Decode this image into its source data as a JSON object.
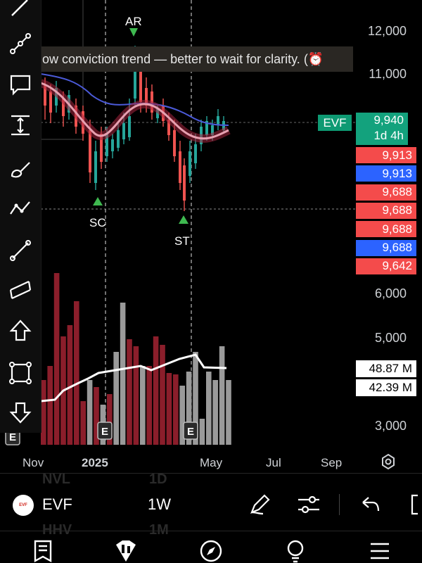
{
  "banner": {
    "text": "ow conviction trend — better to wait for clarity. (⏰"
  },
  "price_axis": {
    "labels": [
      "12,000",
      "11,000",
      "6,000",
      "5,000",
      "3,000"
    ]
  },
  "price_tags": {
    "evf_symbol": "EVF",
    "last_price": "9,940",
    "countdown": "1d 4h",
    "levels": [
      {
        "value": "9,913",
        "color": "#f44b4b"
      },
      {
        "value": "9,913",
        "color": "#2c63ff"
      },
      {
        "value": "9,688",
        "color": "#f44b4b"
      },
      {
        "value": "9,688",
        "color": "#f44b4b"
      },
      {
        "value": "9,688",
        "color": "#f44b4b"
      },
      {
        "value": "9,688",
        "color": "#2c63ff"
      },
      {
        "value": "9,642",
        "color": "#f44b4b"
      }
    ]
  },
  "volume_tags": [
    "48.87 M",
    "42.39 M"
  ],
  "time_axis": {
    "labels": [
      "Nov",
      "2025",
      "May",
      "Jul",
      "Sep"
    ]
  },
  "annotations": {
    "ar": "AR",
    "sc": "SC",
    "st": "ST",
    "earnings": "E"
  },
  "bottom_bar": {
    "symbol": "EVF",
    "interval": "1W",
    "ghost_left": [
      "NVL",
      "HHV"
    ],
    "ghost_right": [
      "1D",
      "1M"
    ]
  },
  "colors": {
    "up": "#26a69a",
    "down": "#ef5350",
    "volume_down": "#8b1e2b",
    "volume_up": "#9a9a9a",
    "accent": "#0e9a73"
  },
  "icons": [
    "pencil-icon",
    "line-tool-icon",
    "comment-icon",
    "measure-icon",
    "brush-icon",
    "trend-icon",
    "ray-icon",
    "parallel-channel-icon",
    "arrow-up-icon",
    "rectangle-icon",
    "arrow-down-icon",
    "settings-icon",
    "draw-icon",
    "indicators-icon",
    "undo-icon",
    "watchlist-icon",
    "chart-tab-icon",
    "explore-icon",
    "ideas-icon",
    "menu-icon"
  ]
}
